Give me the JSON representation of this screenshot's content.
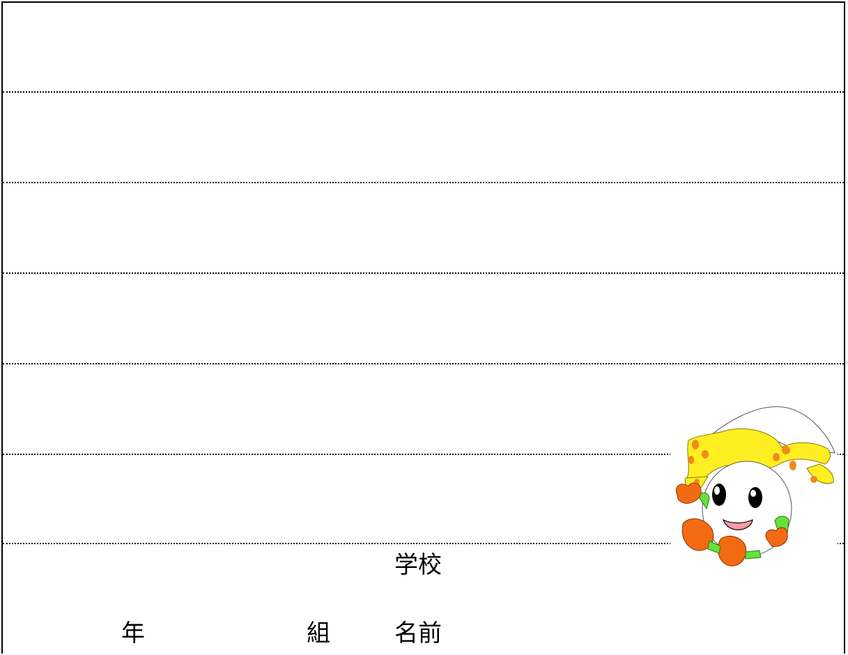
{
  "form": {
    "school_label": "学校",
    "year_label": "年",
    "class_label": "組",
    "name_label": "名前"
  },
  "mascot": {
    "icon": "mascot-character-icon",
    "colors": {
      "hat": "#ffffff",
      "hair": "#ffee22",
      "spots": "#f08a1e",
      "hands_feet": "#f26b12",
      "arms": "#66e03a",
      "mouth": "#ff9aa8",
      "eyes": "#000000"
    }
  }
}
